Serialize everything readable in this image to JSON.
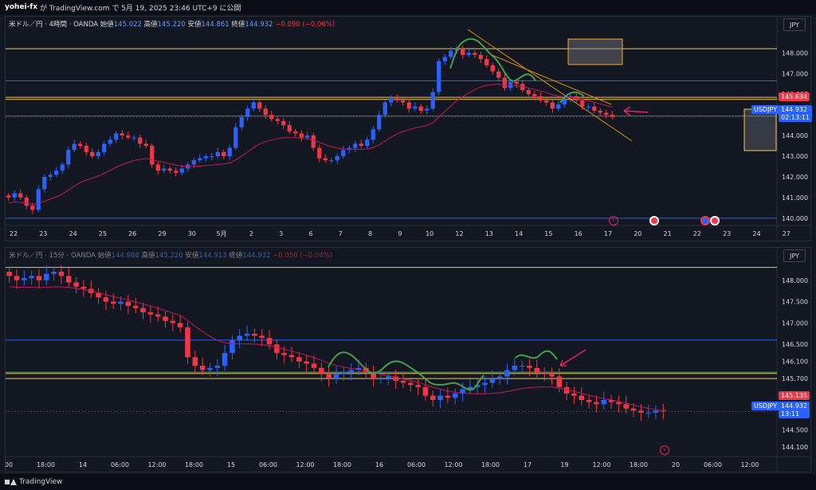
{
  "header": {
    "author": "yohei-fx",
    "text": "が TradingView.com で 5月 19, 2025 23:46 UTC+9 に公開"
  },
  "pane1": {
    "legend": {
      "symbol": "米ドル／円 · 4時間 · OANDA",
      "open_label": "始値",
      "open": "145.022",
      "high_label": "高値",
      "high": "145.220",
      "low_label": "安値",
      "low": "144.861",
      "close_label": "終値",
      "close": "144.932",
      "change": "−0.090 (−0.06%)"
    },
    "currency_button": "JPY",
    "y_ticks": [
      "148.000",
      "147.000",
      "146.000",
      "145.000",
      "144.000",
      "143.000",
      "142.000",
      "141.000",
      "140.000"
    ],
    "x_ticks": [
      "22",
      "23",
      "24",
      "25",
      "26",
      "29",
      "30",
      "5月",
      "2",
      "3",
      "6",
      "7",
      "8",
      "9",
      "10",
      "12",
      "13",
      "14",
      "15",
      "16",
      "17",
      "20",
      "21",
      "22",
      "23",
      "24",
      "27"
    ],
    "price_tag_red": "145.634",
    "symbol_tag": "USDJPY",
    "symbol_price": "144.932",
    "countdown": "02:13:11",
    "chart_data": {
      "type": "candlestick",
      "y_range": [
        139.8,
        148.9
      ],
      "horizontal_levels": [
        {
          "value": 148.2,
          "color": "#f2c94c"
        },
        {
          "value": 146.65,
          "color": "#2962ff"
        },
        {
          "value": 145.85,
          "color": "#f2c94c"
        },
        {
          "value": 145.75,
          "color": "#f2c94c"
        },
        {
          "value": 144.95,
          "color": "#2962ff"
        },
        {
          "value": 140.0,
          "color": "#2962ff"
        }
      ],
      "closes": [
        141.0,
        141.2,
        141.0,
        140.6,
        140.4,
        141.4,
        142.0,
        142.1,
        142.3,
        142.6,
        143.3,
        143.6,
        143.5,
        143.2,
        143.0,
        143.2,
        143.6,
        143.8,
        144.1,
        144.0,
        143.9,
        143.9,
        143.6,
        143.5,
        142.6,
        142.3,
        142.4,
        142.3,
        142.2,
        142.4,
        142.6,
        142.8,
        142.9,
        143.0,
        143.0,
        143.2,
        143.0,
        143.4,
        144.4,
        144.9,
        145.3,
        145.6,
        145.3,
        145.0,
        144.8,
        144.7,
        144.5,
        144.2,
        144.1,
        143.9,
        144.0,
        143.4,
        142.9,
        142.8,
        142.8,
        143.0,
        143.3,
        143.4,
        143.6,
        143.5,
        143.8,
        144.3,
        145.0,
        145.6,
        145.8,
        145.7,
        145.6,
        145.3,
        145.4,
        145.2,
        145.3,
        146.1,
        147.6,
        147.8,
        148.1,
        148.2,
        147.9,
        148.0,
        147.9,
        147.7,
        147.4,
        147.1,
        146.8,
        146.3,
        146.6,
        146.5,
        146.2,
        146.0,
        145.9,
        145.7,
        145.6,
        145.3,
        145.5,
        145.8,
        145.9,
        145.7,
        145.4,
        145.4,
        145.2,
        145.1,
        145.0,
        144.9
      ]
    }
  },
  "pane2": {
    "legend": {
      "symbol": "米ドル／円 · 15分 · OANDA",
      "open_label": "始値",
      "open": "144.988",
      "high_label": "高値",
      "high": "145.220",
      "low_label": "安値",
      "low": "144.913",
      "close_label": "終値",
      "close": "144.932",
      "change": "−0.056 (−0.04%)"
    },
    "currency_button": "JPY",
    "y_ticks": [
      "148.000",
      "147.500",
      "147.000",
      "146.500",
      "146.100",
      "145.700",
      "145.300",
      "144.932",
      "144.500",
      "144.100"
    ],
    "x_ticks": [
      "00",
      "18:00",
      "14",
      "06:00",
      "12:00",
      "18:00",
      "15",
      "06:00",
      "12:00",
      "18:00",
      "16",
      "06:00",
      "12:00",
      "18:00",
      "17",
      "19",
      "12:00",
      "18:00",
      "20",
      "06:00",
      "12:00"
    ],
    "price_tag_red": "145.135",
    "symbol_tag": "USDJPY",
    "symbol_price": "144.932",
    "countdown": "13:11",
    "chart_data": {
      "type": "candlestick",
      "y_range": [
        143.95,
        148.35
      ],
      "horizontal_levels": [
        {
          "value": 148.3,
          "color": "#f2c94c"
        },
        {
          "value": 146.6,
          "color": "#2962ff"
        },
        {
          "value": 145.85,
          "color": "#26a69a"
        },
        {
          "value": 145.82,
          "color": "#f2c94c"
        },
        {
          "value": 145.7,
          "color": "#f2c94c"
        }
      ],
      "closes": [
        148.1,
        148.0,
        148.05,
        148.1,
        148.0,
        148.15,
        148.2,
        148.1,
        147.95,
        147.85,
        147.8,
        147.7,
        147.6,
        147.5,
        147.45,
        147.5,
        147.4,
        147.35,
        147.25,
        147.2,
        147.15,
        147.05,
        147.0,
        146.9,
        146.2,
        146.0,
        145.9,
        145.95,
        146.0,
        146.3,
        146.6,
        146.7,
        146.75,
        146.7,
        146.65,
        146.5,
        146.3,
        146.25,
        146.2,
        146.1,
        146.05,
        145.95,
        145.8,
        145.7,
        145.8,
        145.85,
        145.9,
        145.95,
        145.85,
        145.7,
        145.7,
        145.75,
        145.65,
        145.6,
        145.55,
        145.5,
        145.3,
        145.2,
        145.3,
        145.25,
        145.35,
        145.45,
        145.5,
        145.55,
        145.6,
        145.7,
        145.75,
        145.9,
        146.0,
        146.0,
        145.95,
        145.85,
        145.8,
        145.75,
        145.5,
        145.35,
        145.3,
        145.2,
        145.15,
        145.1,
        145.2,
        145.15,
        145.1,
        145.0,
        144.95,
        144.9,
        144.9,
        144.95,
        144.93
      ]
    }
  },
  "events": [
    "lightning-icon",
    "flag-us-icon",
    "flag-jp-icon"
  ],
  "footer": {
    "brand": "TradingView"
  }
}
